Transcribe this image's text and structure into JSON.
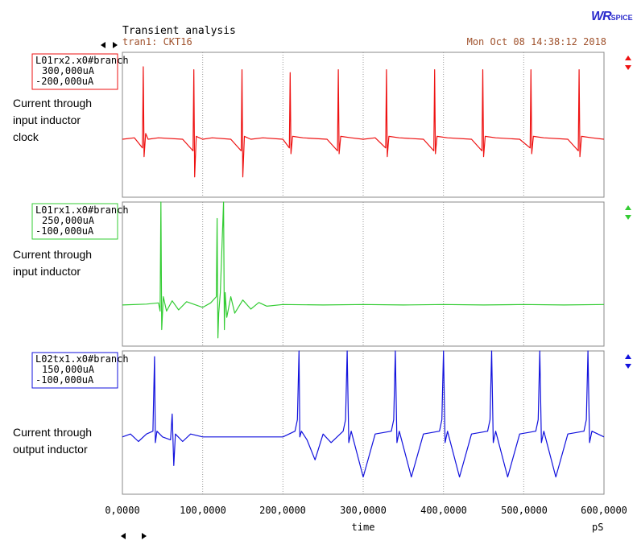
{
  "header": {
    "title": "Transient analysis",
    "subtitle": "tran1: CKT16",
    "date": "Mon Oct 08 14:38:12 2018",
    "logo_big": "WR",
    "logo_small": "SPICE"
  },
  "notes": [
    {
      "lines": [
        "Current through",
        "input inductor",
        "clock"
      ]
    },
    {
      "lines": [
        "Current through",
        "input inductor"
      ]
    },
    {
      "lines": [
        "Current through",
        "output inductor"
      ]
    }
  ],
  "colors": {
    "red": "#ee1111",
    "green": "#33cc33",
    "blue": "#1111dd",
    "grid": "#999999",
    "frame": "#888888"
  },
  "chart_data": {
    "type": "line",
    "xlabel": "time",
    "xunit": "pS",
    "xlim": [
      0,
      600000
    ],
    "xticks": [
      0,
      100000,
      200000,
      300000,
      400000,
      500000,
      600000
    ],
    "xtick_labels": [
      "0,0000",
      "100,0000",
      "200,0000",
      "300,0000",
      "400,0000",
      "500,0000",
      "600,0000"
    ],
    "series": [
      {
        "name": "L01rx2.x0#branch",
        "ymax_label": "300,000uA",
        "ymin_label": "-200,000uA",
        "ylim": [
          -200000,
          300000
        ],
        "color": "red",
        "baseline": 0,
        "x": [
          0,
          15000,
          25000,
          26000,
          27000,
          29000,
          32000,
          45000,
          75000,
          88000,
          89000,
          90000,
          92000,
          100000,
          112000,
          135000,
          148000,
          149000,
          150000,
          152000,
          160000,
          175000,
          200000,
          208000,
          209000,
          210000,
          212000,
          225000,
          255000,
          268000,
          269000,
          270000,
          272000,
          285000,
          300000,
          315000,
          328000,
          329000,
          330000,
          332000,
          345000,
          375000,
          388000,
          389000,
          390000,
          392000,
          405000,
          435000,
          448000,
          449000,
          450000,
          452000,
          465000,
          495000,
          508000,
          509000,
          510000,
          512000,
          525000,
          555000,
          568000,
          569000,
          570000,
          572000,
          585000,
          600000
        ],
        "y": [
          0,
          5000,
          -30000,
          250000,
          -60000,
          20000,
          0,
          5000,
          0,
          -40000,
          240000,
          -130000,
          10000,
          0,
          5000,
          0,
          -40000,
          240000,
          -130000,
          10000,
          0,
          5000,
          0,
          -30000,
          230000,
          -50000,
          10000,
          5000,
          0,
          -40000,
          240000,
          -50000,
          10000,
          5000,
          0,
          5000,
          -30000,
          240000,
          -60000,
          10000,
          5000,
          0,
          -40000,
          240000,
          -50000,
          10000,
          5000,
          0,
          -40000,
          240000,
          -60000,
          10000,
          5000,
          0,
          -30000,
          240000,
          -50000,
          10000,
          5000,
          0,
          -40000,
          240000,
          -60000,
          10000,
          5000,
          0
        ]
      },
      {
        "name": "L01rx1.x0#branch",
        "ymax_label": "250,000uA",
        "ymin_label": "-100,000uA",
        "ylim": [
          -100000,
          250000
        ],
        "color": "green",
        "baseline": 0,
        "x": [
          0,
          30000,
          45000,
          47000,
          48000,
          49000,
          51000,
          55000,
          62000,
          70000,
          80000,
          100000,
          110000,
          117000,
          118000,
          119000,
          120000,
          122000,
          126000,
          127000,
          128000,
          130000,
          135000,
          140000,
          150000,
          160000,
          170000,
          180000,
          200000,
          250000,
          300000,
          350000,
          400000,
          450000,
          500000,
          550000,
          600000
        ],
        "y": [
          0,
          2000,
          5000,
          -15000,
          250000,
          -60000,
          20000,
          -15000,
          10000,
          -12000,
          8000,
          -6000,
          5000,
          20000,
          210000,
          -80000,
          -20000,
          30000,
          250000,
          -60000,
          30000,
          -30000,
          20000,
          -20000,
          12000,
          -10000,
          6000,
          -3000,
          1000,
          0,
          1000,
          0,
          1000,
          0,
          1000,
          0,
          1000
        ]
      },
      {
        "name": "L02tx1.x0#branch",
        "ymax_label": "150,000uA",
        "ymin_label": "-100,000uA",
        "ylim": [
          -100000,
          150000
        ],
        "color": "blue",
        "baseline": 0,
        "x": [
          0,
          10000,
          20000,
          30000,
          38000,
          40000,
          41000,
          43000,
          50000,
          60000,
          62000,
          64000,
          66000,
          75000,
          85000,
          100000,
          150000,
          200000,
          215000,
          218000,
          220000,
          221000,
          223000,
          230000,
          240000,
          250000,
          260000,
          275000,
          278000,
          280000,
          282000,
          285000,
          300000,
          315000,
          335000,
          338000,
          340000,
          342000,
          345000,
          360000,
          375000,
          395000,
          398000,
          400000,
          402000,
          405000,
          420000,
          435000,
          455000,
          458000,
          460000,
          462000,
          465000,
          480000,
          495000,
          515000,
          518000,
          520000,
          522000,
          525000,
          540000,
          555000,
          575000,
          578000,
          580000,
          582000,
          585000,
          600000
        ],
        "y": [
          0,
          5000,
          -8000,
          5000,
          10000,
          140000,
          -10000,
          10000,
          0,
          -5000,
          40000,
          -50000,
          5000,
          -8000,
          5000,
          0,
          0,
          0,
          10000,
          30000,
          150000,
          0,
          10000,
          -5000,
          -40000,
          5000,
          -10000,
          10000,
          30000,
          150000,
          -10000,
          10000,
          -70000,
          5000,
          10000,
          30000,
          150000,
          -10000,
          10000,
          -70000,
          5000,
          10000,
          30000,
          150000,
          -10000,
          10000,
          -70000,
          5000,
          10000,
          30000,
          150000,
          -10000,
          10000,
          -70000,
          5000,
          10000,
          30000,
          150000,
          -10000,
          10000,
          -70000,
          5000,
          10000,
          30000,
          150000,
          -10000,
          10000,
          0
        ]
      }
    ]
  }
}
